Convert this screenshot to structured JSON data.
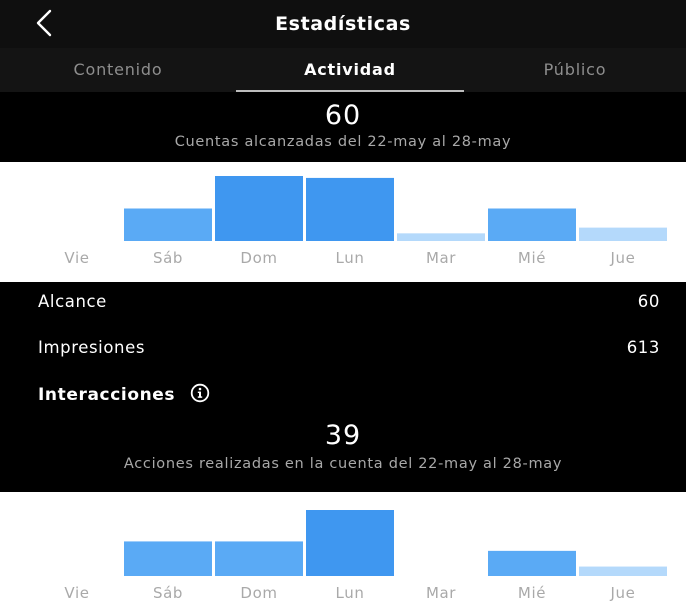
{
  "header": {
    "title": "Estadísticas",
    "back_icon": "chevron-left-icon"
  },
  "tabs": [
    {
      "label": "Contenido",
      "active": false
    },
    {
      "label": "Actividad",
      "active": true
    },
    {
      "label": "Público",
      "active": false
    }
  ],
  "reach_summary": {
    "value": "60",
    "label": "Cuentas alcanzadas del 22-may al 28-may"
  },
  "metrics": {
    "alcance": {
      "label": "Alcance",
      "value": "60"
    },
    "impresiones": {
      "label": "Impresiones",
      "value": "613"
    }
  },
  "interactions": {
    "title": "Interacciones",
    "info_icon": "info-icon",
    "value": "39",
    "label": "Acciones realizadas en la cuenta del 22-may al 28-may"
  },
  "colors": {
    "bar_blue": "#3f97f0",
    "bar_mid": "#5aaaf5",
    "bar_light": "#b4d9fb",
    "tick_gray": "#a9a9a9",
    "background": "#000000"
  },
  "chart_data": [
    {
      "type": "bar",
      "categories": [
        "Vie",
        "Sáb",
        "Dom",
        "Lun",
        "Mar",
        "Mié",
        "Jue"
      ],
      "values": [
        0,
        17,
        34,
        33,
        4,
        17,
        7
      ],
      "ylim": [
        0,
        34
      ]
    },
    {
      "type": "bar",
      "categories": [
        "Vie",
        "Sáb",
        "Dom",
        "Lun",
        "Mar",
        "Mié",
        "Jue"
      ],
      "values": [
        0,
        11,
        11,
        21,
        0,
        8,
        3
      ],
      "ylim": [
        0,
        21
      ]
    }
  ]
}
